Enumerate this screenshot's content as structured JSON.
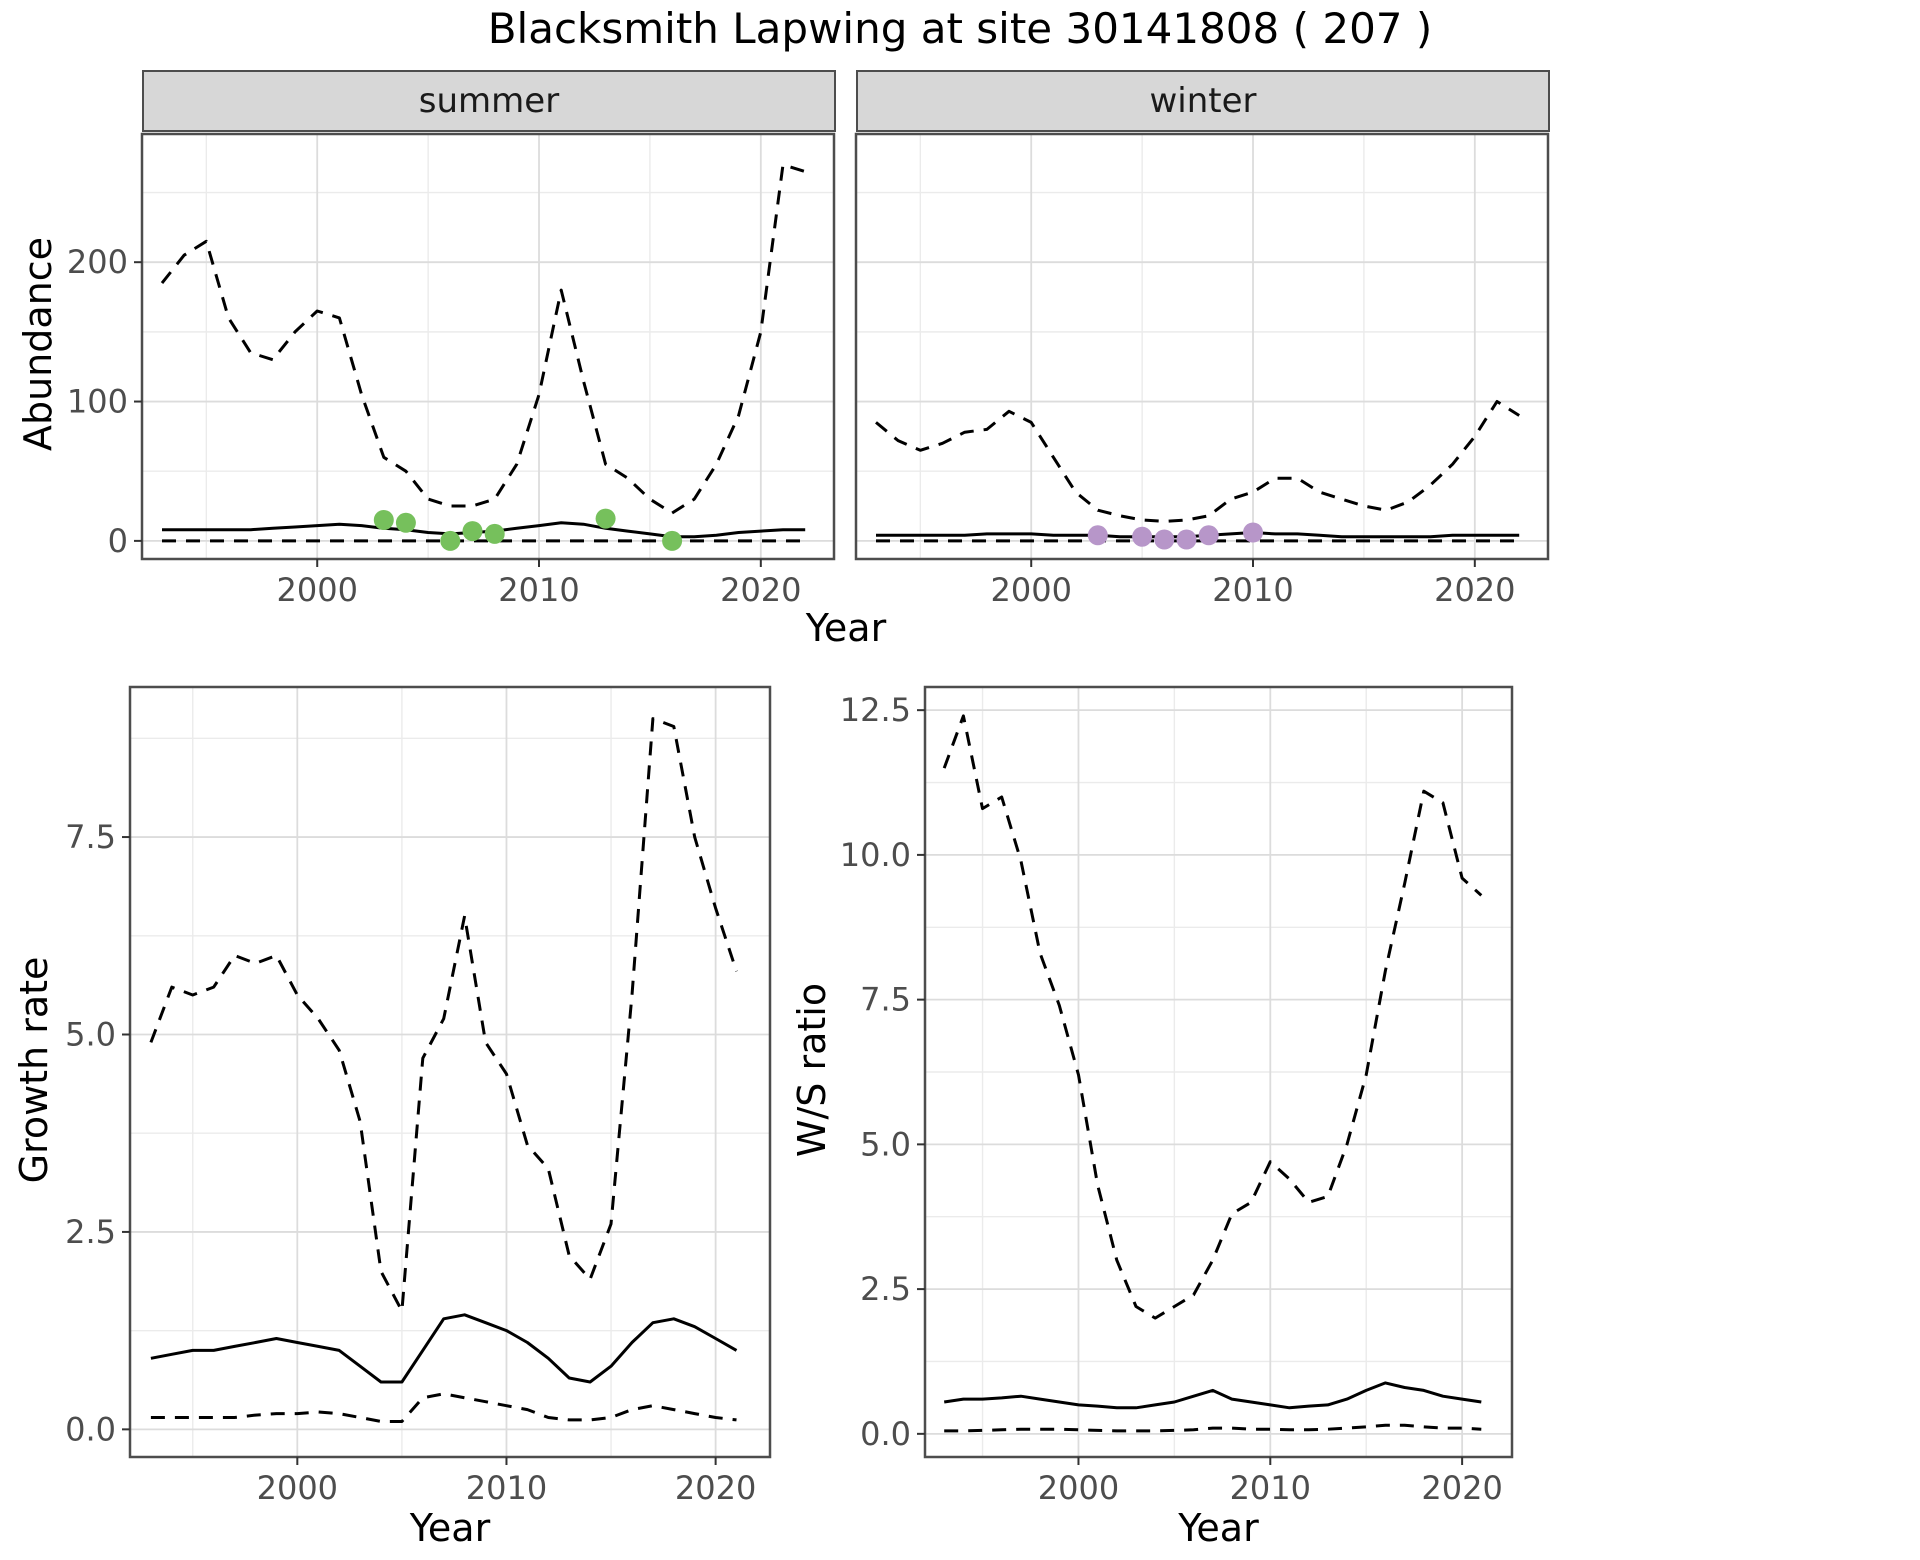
{
  "title": "Blacksmith Lapwing at site 30141808 ( 207 )",
  "colors": {
    "summer_points": "#76c05c",
    "winter_points": "#b796c9",
    "line": "#000000",
    "grid_major": "#dcdcdc",
    "grid_minor": "#ebebeb",
    "strip_bg": "#d7d7d7",
    "panel_border": "#4d4d4d",
    "tick_mark": "#333333",
    "tick_text": "#4d4d4d"
  },
  "chart_data": [
    {
      "id": "abundance_summer",
      "type": "line",
      "facet_label": "summer",
      "xlabel": "Year",
      "ylabel": "Abundance",
      "xlim": [
        1992.1,
        2023.3
      ],
      "ylim": [
        -13,
        292
      ],
      "xticks": [
        2000,
        2010,
        2020
      ],
      "xtick_labels": [
        "2000",
        "2010",
        "2020"
      ],
      "xticks_minor": [
        1995,
        2005,
        2015
      ],
      "yticks": [
        0,
        100,
        200
      ],
      "ytick_labels": [
        "0",
        "100",
        "200"
      ],
      "yticks_minor": [
        50,
        150,
        250
      ],
      "grid": true,
      "legend": "none",
      "x": [
        1993,
        1994,
        1995,
        1996,
        1997,
        1998,
        1999,
        2000,
        2001,
        2002,
        2003,
        2004,
        2005,
        2006,
        2007,
        2008,
        2009,
        2010,
        2011,
        2012,
        2013,
        2014,
        2015,
        2016,
        2017,
        2018,
        2019,
        2020,
        2021,
        2022
      ],
      "series": [
        {
          "name": "upper_95ci",
          "style": "dashed",
          "values": [
            185,
            205,
            215,
            160,
            135,
            130,
            150,
            165,
            160,
            105,
            60,
            50,
            30,
            25,
            25,
            30,
            55,
            105,
            180,
            115,
            55,
            45,
            30,
            20,
            30,
            55,
            90,
            150,
            270,
            265
          ]
        },
        {
          "name": "median",
          "style": "solid",
          "values": [
            8,
            8,
            8,
            8,
            8,
            9,
            10,
            11,
            12,
            11,
            9,
            8,
            6,
            5,
            6,
            7,
            9,
            11,
            13,
            12,
            9,
            7,
            5,
            3,
            3,
            4,
            6,
            7,
            8,
            8
          ]
        },
        {
          "name": "lower_95ci",
          "style": "dashed",
          "values": [
            0,
            0,
            0,
            0,
            0,
            0,
            0,
            0,
            0,
            0,
            0,
            0,
            0,
            0,
            0,
            0,
            0,
            0,
            0,
            0,
            0,
            0,
            0,
            0,
            0,
            0,
            0,
            0,
            0,
            0
          ]
        }
      ],
      "points": {
        "name": "observed_counts",
        "color_key": "summer_points",
        "x": [
          2003,
          2004,
          2006,
          2007,
          2008,
          2013,
          2016
        ],
        "y": [
          15,
          13,
          0,
          7,
          5,
          16,
          0
        ]
      }
    },
    {
      "id": "abundance_winter",
      "type": "line",
      "facet_label": "winter",
      "xlabel": "Year",
      "ylabel": "Abundance",
      "xlim": [
        1992.1,
        2023.3
      ],
      "ylim": [
        -13,
        292
      ],
      "xticks": [
        2000,
        2010,
        2020
      ],
      "xtick_labels": [
        "2000",
        "2010",
        "2020"
      ],
      "xticks_minor": [
        1995,
        2005,
        2015
      ],
      "yticks": [
        0,
        100,
        200
      ],
      "ytick_labels": [
        "0",
        "100",
        "200"
      ],
      "yticks_minor": [
        50,
        150,
        250
      ],
      "grid": true,
      "legend": "none",
      "x": [
        1993,
        1994,
        1995,
        1996,
        1997,
        1998,
        1999,
        2000,
        2001,
        2002,
        2003,
        2004,
        2005,
        2006,
        2007,
        2008,
        2009,
        2010,
        2011,
        2012,
        2013,
        2014,
        2015,
        2016,
        2017,
        2018,
        2019,
        2020,
        2021,
        2022
      ],
      "series": [
        {
          "name": "upper_95ci",
          "style": "dashed",
          "values": [
            85,
            72,
            65,
            70,
            78,
            80,
            93,
            85,
            60,
            35,
            22,
            18,
            15,
            14,
            15,
            18,
            30,
            35,
            45,
            45,
            35,
            30,
            25,
            22,
            28,
            40,
            55,
            75,
            100,
            90
          ]
        },
        {
          "name": "median",
          "style": "solid",
          "values": [
            4,
            4,
            4,
            4,
            4,
            5,
            5,
            5,
            4,
            4,
            4,
            3,
            3,
            3,
            3,
            4,
            5,
            6,
            5,
            5,
            4,
            3,
            3,
            3,
            3,
            3,
            4,
            4,
            4,
            4
          ]
        },
        {
          "name": "lower_95ci",
          "style": "dashed",
          "values": [
            0,
            0,
            0,
            0,
            0,
            0,
            0,
            0,
            0,
            0,
            0,
            0,
            0,
            0,
            0,
            0,
            0,
            0,
            0,
            0,
            0,
            0,
            0,
            0,
            0,
            0,
            0,
            0,
            0,
            0
          ]
        }
      ],
      "points": {
        "name": "observed_counts",
        "color_key": "winter_points",
        "x": [
          2003,
          2005,
          2006,
          2007,
          2008,
          2010
        ],
        "y": [
          4,
          3,
          1,
          1,
          4,
          6
        ]
      }
    },
    {
      "id": "growth_rate",
      "type": "line",
      "facet_label": "",
      "xlabel": "Year",
      "ylabel": "Growth rate",
      "xlim": [
        1992,
        2022.6
      ],
      "ylim": [
        -0.35,
        9.4
      ],
      "xticks": [
        2000,
        2010,
        2020
      ],
      "xtick_labels": [
        "2000",
        "2010",
        "2020"
      ],
      "xticks_minor": [
        1995,
        2005,
        2015
      ],
      "yticks": [
        0,
        2.5,
        5,
        7.5
      ],
      "ytick_labels": [
        "0.0",
        "2.5",
        "5.0",
        "7.5"
      ],
      "yticks_minor": [
        1.25,
        3.75,
        6.25,
        8.75
      ],
      "grid": true,
      "legend": "none",
      "x": [
        1993,
        1994,
        1995,
        1996,
        1997,
        1998,
        1999,
        2000,
        2001,
        2002,
        2003,
        2004,
        2005,
        2006,
        2007,
        2008,
        2009,
        2010,
        2011,
        2012,
        2013,
        2014,
        2015,
        2016,
        2017,
        2018,
        2019,
        2020,
        2021
      ],
      "series": [
        {
          "name": "upper_95ci",
          "style": "dashed",
          "values": [
            4.9,
            5.6,
            5.5,
            5.6,
            6.0,
            5.9,
            6.0,
            5.5,
            5.2,
            4.8,
            3.9,
            2.0,
            1.5,
            4.7,
            5.2,
            6.5,
            4.9,
            4.5,
            3.6,
            3.3,
            2.2,
            1.9,
            2.6,
            5.5,
            9.0,
            8.9,
            7.5,
            6.6,
            5.8
          ]
        },
        {
          "name": "median",
          "style": "solid",
          "values": [
            0.9,
            0.95,
            1.0,
            1.0,
            1.05,
            1.1,
            1.15,
            1.1,
            1.05,
            1.0,
            0.8,
            0.6,
            0.6,
            1.0,
            1.4,
            1.45,
            1.35,
            1.25,
            1.1,
            0.9,
            0.65,
            0.6,
            0.8,
            1.1,
            1.35,
            1.4,
            1.3,
            1.15,
            1.0
          ]
        },
        {
          "name": "lower_95ci",
          "style": "dashed",
          "values": [
            0.15,
            0.15,
            0.15,
            0.15,
            0.15,
            0.18,
            0.2,
            0.2,
            0.22,
            0.2,
            0.15,
            0.1,
            0.1,
            0.4,
            0.45,
            0.4,
            0.35,
            0.3,
            0.25,
            0.15,
            0.12,
            0.12,
            0.15,
            0.25,
            0.3,
            0.25,
            0.2,
            0.15,
            0.12
          ]
        }
      ],
      "points": null
    },
    {
      "id": "ws_ratio",
      "type": "line",
      "facet_label": "",
      "xlabel": "Year",
      "ylabel": "W/S ratio",
      "xlim": [
        1992,
        2022.6
      ],
      "ylim": [
        -0.4,
        12.9
      ],
      "xticks": [
        2000,
        2010,
        2020
      ],
      "xtick_labels": [
        "2000",
        "2010",
        "2020"
      ],
      "xticks_minor": [
        1995,
        2005,
        2015
      ],
      "yticks": [
        0,
        2.5,
        5,
        7.5,
        10,
        12.5
      ],
      "ytick_labels": [
        "0.0",
        "2.5",
        "5.0",
        "7.5",
        "10.0",
        "12.5"
      ],
      "yticks_minor": [
        1.25,
        3.75,
        6.25,
        8.75,
        11.25
      ],
      "grid": true,
      "legend": "none",
      "x": [
        1993,
        1994,
        1995,
        1996,
        1997,
        1998,
        1999,
        2000,
        2001,
        2002,
        2003,
        2004,
        2005,
        2006,
        2007,
        2008,
        2009,
        2010,
        2011,
        2012,
        2013,
        2014,
        2015,
        2016,
        2017,
        2018,
        2019,
        2020,
        2021
      ],
      "series": [
        {
          "name": "upper_95ci",
          "style": "dashed",
          "values": [
            11.5,
            12.4,
            10.8,
            11.0,
            9.9,
            8.3,
            7.4,
            6.2,
            4.3,
            3.0,
            2.2,
            2.0,
            2.2,
            2.4,
            3.0,
            3.8,
            4.0,
            4.7,
            4.4,
            4.0,
            4.1,
            5.0,
            6.2,
            8.0,
            9.5,
            11.1,
            10.9,
            9.6,
            9.3
          ]
        },
        {
          "name": "median",
          "style": "solid",
          "values": [
            0.55,
            0.6,
            0.6,
            0.62,
            0.65,
            0.6,
            0.55,
            0.5,
            0.48,
            0.45,
            0.45,
            0.5,
            0.55,
            0.65,
            0.75,
            0.6,
            0.55,
            0.5,
            0.45,
            0.48,
            0.5,
            0.6,
            0.75,
            0.88,
            0.8,
            0.75,
            0.65,
            0.6,
            0.55
          ]
        },
        {
          "name": "lower_95ci",
          "style": "dashed",
          "values": [
            0.05,
            0.05,
            0.06,
            0.07,
            0.08,
            0.08,
            0.08,
            0.07,
            0.06,
            0.05,
            0.05,
            0.05,
            0.06,
            0.07,
            0.1,
            0.1,
            0.08,
            0.08,
            0.07,
            0.07,
            0.08,
            0.1,
            0.12,
            0.15,
            0.15,
            0.12,
            0.1,
            0.1,
            0.08
          ]
        }
      ],
      "points": null
    }
  ]
}
